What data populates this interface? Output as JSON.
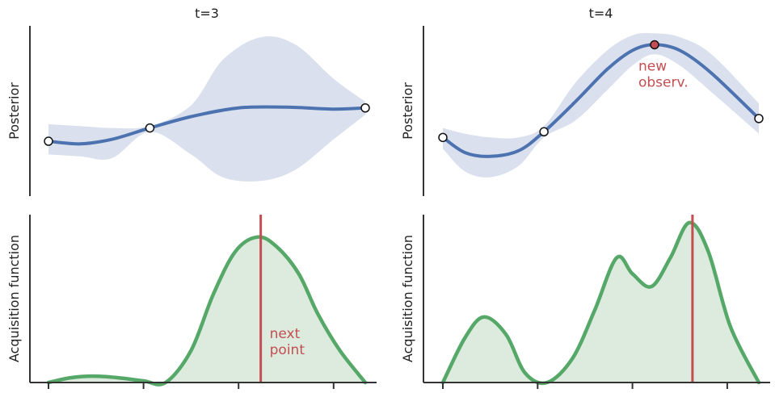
{
  "chart_data": [
    {
      "type": "line",
      "panel": "posterior",
      "title": "t=3",
      "xlabel": "",
      "ylabel": "Posterior",
      "xlim": [
        0,
        1
      ],
      "ylim": [
        -2.0,
        2.5
      ],
      "mean": {
        "x": [
          0.0,
          0.1,
          0.2,
          0.32,
          0.45,
          0.6,
          0.75,
          0.9,
          1.0
        ],
        "y": [
          -0.55,
          -0.62,
          -0.5,
          -0.2,
          0.1,
          0.33,
          0.35,
          0.3,
          0.33
        ]
      },
      "band": {
        "x": [
          0.0,
          0.1,
          0.2,
          0.32,
          0.45,
          0.55,
          0.67,
          0.78,
          0.9,
          1.0
        ],
        "upper": [
          -0.1,
          -0.15,
          -0.2,
          -0.15,
          0.4,
          1.6,
          2.2,
          2.0,
          1.1,
          0.5
        ],
        "lower": [
          -0.9,
          -0.95,
          -1.0,
          -0.3,
          -0.9,
          -1.5,
          -1.6,
          -1.3,
          -0.5,
          0.15
        ]
      },
      "observations": {
        "x": [
          0.0,
          0.32,
          1.0
        ],
        "y": [
          -0.55,
          -0.2,
          0.33
        ]
      },
      "colors": {
        "mean": "#4c72b0",
        "band": "#dae0ee",
        "observation": "#ffffff"
      }
    },
    {
      "type": "area",
      "panel": "acquisition",
      "xlabel": "",
      "ylabel": "Acquisition function",
      "xlim": [
        0,
        1
      ],
      "ylim": [
        0,
        1.05
      ],
      "xticks": [
        0.0,
        0.3,
        0.6,
        0.9
      ],
      "x": [
        0.0,
        0.07,
        0.14,
        0.22,
        0.3,
        0.37,
        0.45,
        0.52,
        0.59,
        0.66,
        0.72,
        0.79,
        0.85,
        0.92,
        1.0
      ],
      "y": [
        0.0,
        0.03,
        0.04,
        0.03,
        0.01,
        0.0,
        0.2,
        0.55,
        0.82,
        0.91,
        0.85,
        0.68,
        0.43,
        0.2,
        0.0
      ],
      "next_point_x": 0.67,
      "annotation": [
        "next",
        "point"
      ],
      "colors": {
        "line": "#55a868",
        "fill": "#dcebde",
        "marker": "#c44e52"
      }
    },
    {
      "type": "line",
      "panel": "posterior",
      "title": "t=4",
      "xlabel": "",
      "ylabel": "Posterior",
      "xlim": [
        0,
        1
      ],
      "ylim": [
        -2.0,
        2.5
      ],
      "mean": {
        "x": [
          0.0,
          0.07,
          0.15,
          0.24,
          0.32,
          0.42,
          0.52,
          0.6,
          0.67,
          0.75,
          0.85,
          1.0
        ],
        "y": [
          -0.45,
          -0.85,
          -0.95,
          -0.8,
          -0.3,
          0.5,
          1.35,
          1.85,
          2.0,
          1.85,
          1.25,
          0.05
        ]
      },
      "band": {
        "x": [
          0.0,
          0.07,
          0.15,
          0.24,
          0.32,
          0.42,
          0.52,
          0.6,
          0.67,
          0.75,
          0.85,
          1.0
        ],
        "upper": [
          -0.2,
          -0.35,
          -0.45,
          -0.45,
          -0.15,
          1.0,
          1.85,
          2.25,
          2.3,
          2.2,
          1.75,
          0.45
        ],
        "lower": [
          -0.75,
          -1.35,
          -1.5,
          -1.2,
          -0.45,
          0.0,
          0.8,
          1.45,
          1.75,
          1.45,
          0.75,
          -0.35
        ]
      },
      "observations": {
        "x": [
          0.0,
          0.32,
          0.67,
          1.0
        ],
        "y": [
          -0.45,
          -0.3,
          2.0,
          0.05
        ]
      },
      "new_observation_index": 2,
      "annotation": [
        "new",
        "observ."
      ],
      "colors": {
        "mean": "#4c72b0",
        "band": "#dae0ee",
        "observation": "#ffffff",
        "new_observation": "#c44e52"
      }
    },
    {
      "type": "area",
      "panel": "acquisition",
      "xlabel": "",
      "ylabel": "Acquisition function",
      "xlim": [
        0,
        1
      ],
      "ylim": [
        0,
        1.05
      ],
      "xticks": [
        0.0,
        0.3,
        0.6,
        0.9
      ],
      "x": [
        0.0,
        0.07,
        0.13,
        0.2,
        0.26,
        0.33,
        0.41,
        0.48,
        0.55,
        0.6,
        0.66,
        0.72,
        0.78,
        0.84,
        0.91,
        1.0
      ],
      "y": [
        0.0,
        0.28,
        0.41,
        0.3,
        0.06,
        0.0,
        0.15,
        0.45,
        0.78,
        0.68,
        0.6,
        0.78,
        1.0,
        0.82,
        0.35,
        0.0
      ],
      "next_point_x": 0.79,
      "colors": {
        "line": "#55a868",
        "fill": "#dcebde",
        "marker": "#c44e52"
      }
    }
  ]
}
